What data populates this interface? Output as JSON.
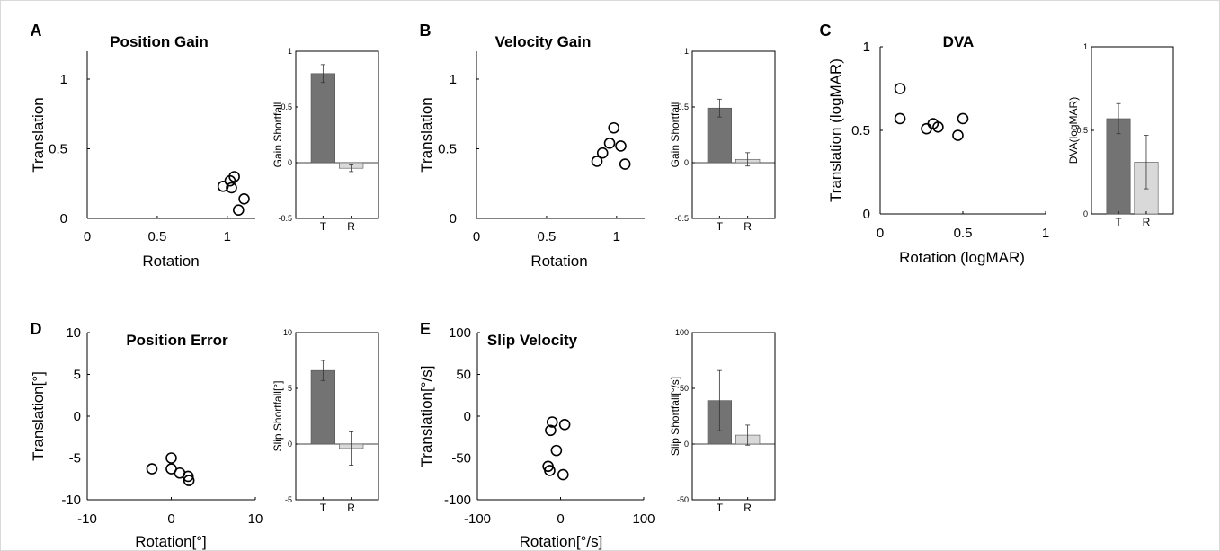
{
  "colors": {
    "T_bar": "#737373",
    "R_bar": "#d9d9d9",
    "axis": "#000000",
    "frame": "#d9d9d9"
  },
  "chart_data": [
    {
      "panel": "A",
      "type": "scatter",
      "title": "Position Gain",
      "xlabel": "Rotation",
      "ylabel": "Translation",
      "xlim": [
        0,
        1.2
      ],
      "ylim": [
        0,
        1.2
      ],
      "xticks": [
        "0",
        "0.5",
        "1"
      ],
      "yticks": [
        "0",
        "0.5",
        "1"
      ],
      "x": [
        0.97,
        1.02,
        1.03,
        1.05,
        1.08,
        1.12
      ],
      "y": [
        0.23,
        0.27,
        0.22,
        0.3,
        0.06,
        0.14
      ],
      "inset": {
        "type": "bar",
        "ylabel": "Gain Shortfall",
        "ylim": [
          -0.5,
          1
        ],
        "yticks": [
          "-0.5",
          "0",
          "0.5",
          "1"
        ],
        "categories": [
          "T",
          "R"
        ],
        "values": [
          0.8,
          -0.05
        ],
        "errors": [
          0.08,
          0.03
        ]
      }
    },
    {
      "panel": "B",
      "type": "scatter",
      "title": "Velocity Gain",
      "xlabel": "Rotation",
      "ylabel": "Translation",
      "xlim": [
        0,
        1.2
      ],
      "ylim": [
        0,
        1.2
      ],
      "xticks": [
        "0",
        "0.5",
        "1"
      ],
      "yticks": [
        "0",
        "0.5",
        "1"
      ],
      "x": [
        0.86,
        0.9,
        0.95,
        0.98,
        1.03,
        1.06
      ],
      "y": [
        0.41,
        0.47,
        0.54,
        0.65,
        0.52,
        0.39
      ],
      "inset": {
        "type": "bar",
        "ylabel": "Gain Shortfall",
        "ylim": [
          -0.5,
          1
        ],
        "yticks": [
          "-0.5",
          "0",
          "0.5",
          "1"
        ],
        "categories": [
          "T",
          "R"
        ],
        "values": [
          0.49,
          0.03
        ],
        "errors": [
          0.08,
          0.06
        ]
      }
    },
    {
      "panel": "C",
      "type": "scatter",
      "title": "DVA",
      "xlabel": "Rotation (logMAR)",
      "ylabel": "Translation (logMAR)",
      "xlim": [
        0,
        1
      ],
      "ylim": [
        0,
        1
      ],
      "xticks": [
        "0",
        "0.5",
        "1"
      ],
      "yticks": [
        "0",
        "0.5",
        "1"
      ],
      "x": [
        0.12,
        0.12,
        0.28,
        0.32,
        0.35,
        0.47,
        0.5
      ],
      "y": [
        0.75,
        0.57,
        0.51,
        0.54,
        0.52,
        0.47,
        0.57
      ],
      "inset": {
        "type": "bar",
        "ylabel": "DVA(logMAR)",
        "ylim": [
          0,
          1
        ],
        "yticks": [
          "0",
          "0.5",
          "1"
        ],
        "categories": [
          "T",
          "R"
        ],
        "values": [
          0.57,
          0.31
        ],
        "errors": [
          0.09,
          0.16
        ]
      }
    },
    {
      "panel": "D",
      "type": "scatter",
      "title": "Position Error",
      "xlabel": "Rotation[°]",
      "ylabel": "Translation[°]",
      "xlim": [
        -10,
        10
      ],
      "ylim": [
        -10,
        10
      ],
      "xticks": [
        "-10",
        "0",
        "10"
      ],
      "yticks": [
        "-10",
        "-5",
        "0",
        "5",
        "10"
      ],
      "x": [
        -2.3,
        0.0,
        0.0,
        1.0,
        2.0,
        2.1
      ],
      "y": [
        -6.3,
        -5.0,
        -6.3,
        -6.8,
        -7.2,
        -7.7
      ],
      "inset": {
        "type": "bar",
        "ylabel": "Slip Shortfall[°]",
        "ylim": [
          -5,
          10
        ],
        "yticks": [
          "-5",
          "0",
          "5",
          "10"
        ],
        "categories": [
          "T",
          "R"
        ],
        "values": [
          6.6,
          -0.4
        ],
        "errors": [
          0.9,
          1.5
        ]
      }
    },
    {
      "panel": "E",
      "type": "scatter",
      "title": "Slip Velocity",
      "xlabel": "Rotation[°/s]",
      "ylabel": "Translation[°/s]",
      "xlim": [
        -100,
        100
      ],
      "ylim": [
        -100,
        100
      ],
      "xticks": [
        "-100",
        "0",
        "100"
      ],
      "yticks": [
        "-100",
        "-50",
        "0",
        "50",
        "100"
      ],
      "x": [
        -10,
        -12,
        -5,
        -15,
        -13,
        5,
        3
      ],
      "y": [
        -7,
        -17,
        -41,
        -60,
        -65,
        -10,
        -70
      ],
      "inset": {
        "type": "bar",
        "ylabel": "Slip Shortfall[°/s]",
        "ylim": [
          -50,
          100
        ],
        "yticks": [
          "-50",
          "0",
          "50",
          "100"
        ],
        "categories": [
          "T",
          "R"
        ],
        "values": [
          39,
          8
        ],
        "errors": [
          27,
          9
        ]
      }
    }
  ]
}
